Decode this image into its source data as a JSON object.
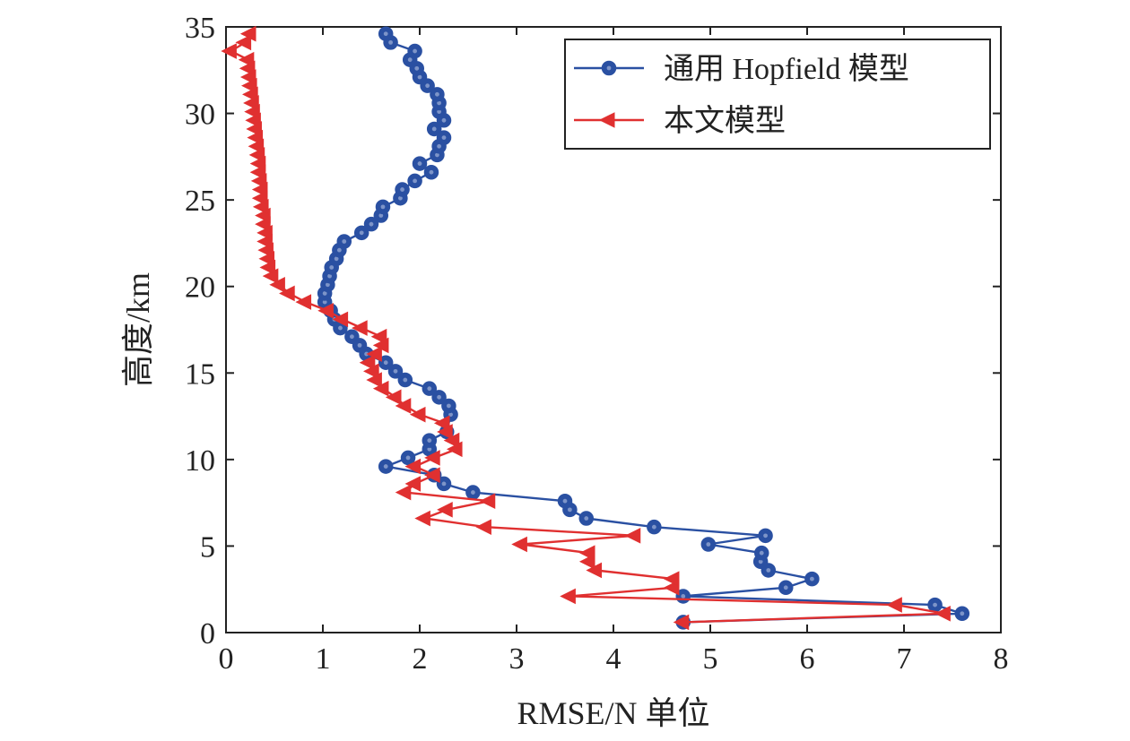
{
  "chart_data": {
    "type": "line",
    "xlabel": "RMSE/N 单位",
    "ylabel": "高度/km",
    "xlim": [
      0,
      8
    ],
    "ylim": [
      0,
      35
    ],
    "x_ticks": [
      "0",
      "1",
      "2",
      "3",
      "4",
      "5",
      "6",
      "7",
      "8"
    ],
    "y_ticks": [
      "0",
      "5",
      "10",
      "15",
      "20",
      "25",
      "30",
      "35"
    ],
    "grid": false,
    "legend_position": "top-right",
    "series": [
      {
        "name": "通用 Hopfield 模型",
        "color": "#2a50a2",
        "marker": "circle",
        "points": [
          [
            4.72,
            0.6
          ],
          [
            7.6,
            1.1
          ],
          [
            7.32,
            1.6
          ],
          [
            4.72,
            2.1
          ],
          [
            5.78,
            2.6
          ],
          [
            6.05,
            3.1
          ],
          [
            5.6,
            3.6
          ],
          [
            5.52,
            4.1
          ],
          [
            5.53,
            4.6
          ],
          [
            4.98,
            5.1
          ],
          [
            5.57,
            5.6
          ],
          [
            4.42,
            6.1
          ],
          [
            3.72,
            6.6
          ],
          [
            3.55,
            7.1
          ],
          [
            3.5,
            7.6
          ],
          [
            2.55,
            8.1
          ],
          [
            2.25,
            8.6
          ],
          [
            2.15,
            9.1
          ],
          [
            1.65,
            9.6
          ],
          [
            1.88,
            10.1
          ],
          [
            2.1,
            10.6
          ],
          [
            2.1,
            11.1
          ],
          [
            2.28,
            11.6
          ],
          [
            2.32,
            12.6
          ],
          [
            2.3,
            13.1
          ],
          [
            2.2,
            13.6
          ],
          [
            2.1,
            14.1
          ],
          [
            1.85,
            14.6
          ],
          [
            1.75,
            15.1
          ],
          [
            1.65,
            15.6
          ],
          [
            1.45,
            16.1
          ],
          [
            1.38,
            16.6
          ],
          [
            1.3,
            17.1
          ],
          [
            1.18,
            17.6
          ],
          [
            1.12,
            18.1
          ],
          [
            1.08,
            18.6
          ],
          [
            1.02,
            19.1
          ],
          [
            1.02,
            19.6
          ],
          [
            1.05,
            20.1
          ],
          [
            1.07,
            20.6
          ],
          [
            1.09,
            21.1
          ],
          [
            1.14,
            21.6
          ],
          [
            1.17,
            22.1
          ],
          [
            1.22,
            22.6
          ],
          [
            1.4,
            23.1
          ],
          [
            1.5,
            23.6
          ],
          [
            1.6,
            24.1
          ],
          [
            1.62,
            24.6
          ],
          [
            1.8,
            25.1
          ],
          [
            1.82,
            25.6
          ],
          [
            1.95,
            26.1
          ],
          [
            2.12,
            26.6
          ],
          [
            2.0,
            27.1
          ],
          [
            2.18,
            27.6
          ],
          [
            2.2,
            28.1
          ],
          [
            2.25,
            28.6
          ],
          [
            2.15,
            29.1
          ],
          [
            2.25,
            29.6
          ],
          [
            2.2,
            30.1
          ],
          [
            2.2,
            30.6
          ],
          [
            2.18,
            31.1
          ],
          [
            2.08,
            31.6
          ],
          [
            2.0,
            32.1
          ],
          [
            1.97,
            32.6
          ],
          [
            1.9,
            33.1
          ],
          [
            1.95,
            33.6
          ],
          [
            1.7,
            34.1
          ],
          [
            1.65,
            34.6
          ]
        ]
      },
      {
        "name": "本文模型",
        "color": "#e03030",
        "marker": "triangle-left",
        "points": [
          [
            4.72,
            0.6
          ],
          [
            7.42,
            1.1
          ],
          [
            6.92,
            1.6
          ],
          [
            3.55,
            2.1
          ],
          [
            4.62,
            2.6
          ],
          [
            4.62,
            3.1
          ],
          [
            3.82,
            3.6
          ],
          [
            3.75,
            4.1
          ],
          [
            3.75,
            4.6
          ],
          [
            3.05,
            5.1
          ],
          [
            4.22,
            5.6
          ],
          [
            2.68,
            6.1
          ],
          [
            2.05,
            6.6
          ],
          [
            2.28,
            7.1
          ],
          [
            2.72,
            7.6
          ],
          [
            1.85,
            8.1
          ],
          [
            1.95,
            8.6
          ],
          [
            2.15,
            9.1
          ],
          [
            1.95,
            9.6
          ],
          [
            2.15,
            10.1
          ],
          [
            2.38,
            10.6
          ],
          [
            2.35,
            11.1
          ],
          [
            2.28,
            11.6
          ],
          [
            2.25,
            12.1
          ],
          [
            2.0,
            12.6
          ],
          [
            1.85,
            13.1
          ],
          [
            1.75,
            13.6
          ],
          [
            1.62,
            14.1
          ],
          [
            1.55,
            14.6
          ],
          [
            1.52,
            15.1
          ],
          [
            1.48,
            15.6
          ],
          [
            1.55,
            16.1
          ],
          [
            1.62,
            16.6
          ],
          [
            1.6,
            17.1
          ],
          [
            1.4,
            17.6
          ],
          [
            1.2,
            18.1
          ],
          [
            1.05,
            18.6
          ],
          [
            0.82,
            19.1
          ],
          [
            0.65,
            19.6
          ],
          [
            0.55,
            20.1
          ],
          [
            0.48,
            20.6
          ],
          [
            0.45,
            21.1
          ],
          [
            0.44,
            21.6
          ],
          [
            0.43,
            22.1
          ],
          [
            0.42,
            22.6
          ],
          [
            0.42,
            23.1
          ],
          [
            0.4,
            23.6
          ],
          [
            0.4,
            24.1
          ],
          [
            0.38,
            24.6
          ],
          [
            0.37,
            25.1
          ],
          [
            0.37,
            25.6
          ],
          [
            0.36,
            26.1
          ],
          [
            0.35,
            26.6
          ],
          [
            0.35,
            27.1
          ],
          [
            0.34,
            27.6
          ],
          [
            0.33,
            28.1
          ],
          [
            0.32,
            28.6
          ],
          [
            0.31,
            29.1
          ],
          [
            0.3,
            29.6
          ],
          [
            0.29,
            30.1
          ],
          [
            0.28,
            30.6
          ],
          [
            0.27,
            31.1
          ],
          [
            0.26,
            31.6
          ],
          [
            0.25,
            32.1
          ],
          [
            0.24,
            32.6
          ],
          [
            0.23,
            33.1
          ],
          [
            0.05,
            33.6
          ],
          [
            0.2,
            34.1
          ],
          [
            0.25,
            34.6
          ]
        ]
      }
    ]
  }
}
